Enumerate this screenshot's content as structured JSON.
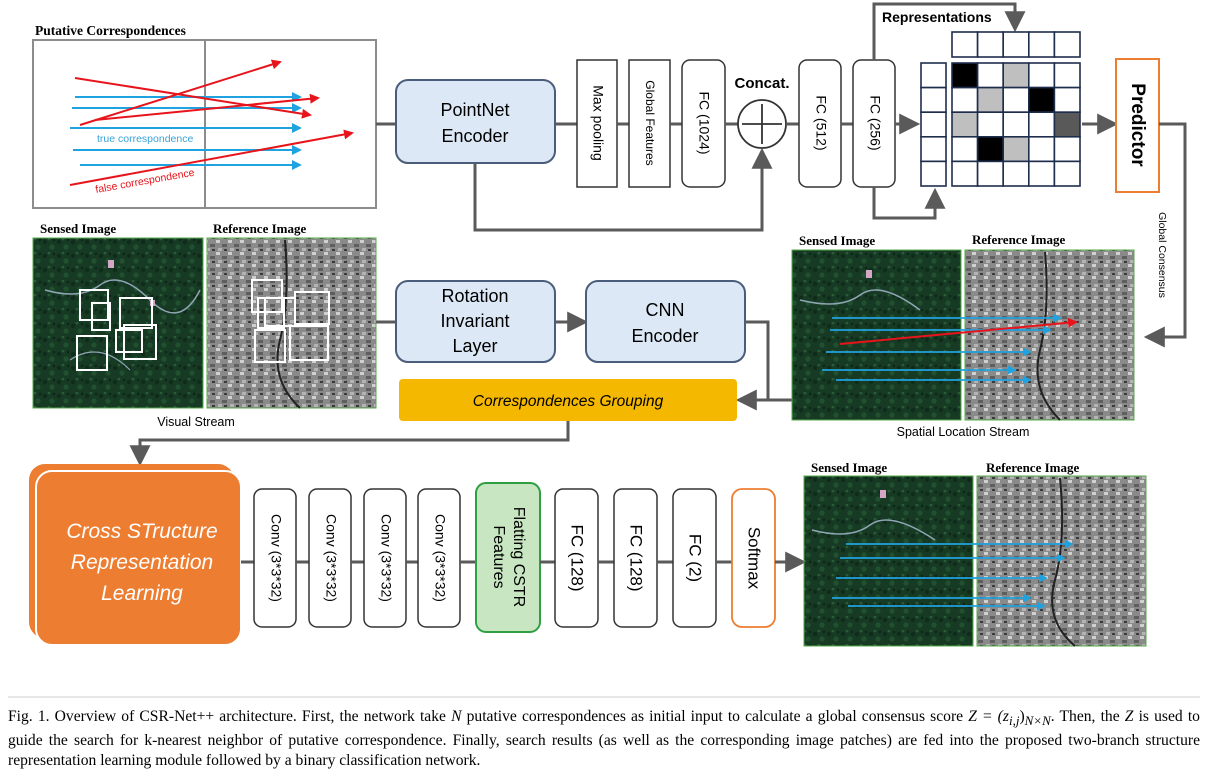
{
  "colors": {
    "blue_box_fill": "#dde8f6",
    "blue_box_stroke": "#4a5d7a",
    "orange": "#ed7d31",
    "yellow": "#f5b800",
    "green_fill": "#c7e6c1",
    "green_stroke": "#2ea043",
    "true_line": "#1fa3e0",
    "false_line": "#e8141b",
    "arrow_gray": "#5a5a5a"
  },
  "putative": {
    "title": "Putative Correspondences",
    "true_label": "true correspondence",
    "false_label": "false correspondence"
  },
  "top_row": {
    "pointnet": [
      "PointNet",
      "Encoder"
    ],
    "maxpool": "Max pooling",
    "global_features": "Global Features",
    "fc1024": "FC (1024)",
    "concat": "Concat.",
    "fc512": "FC (512)",
    "fc256": "FC (256)",
    "representations": "Representations",
    "predictor": "Predictor",
    "global_consensus": "Global Consensus"
  },
  "middle_row": {
    "sensed": "Sensed Image",
    "reference": "Reference Image",
    "visual_stream": "Visual Stream",
    "rotation": [
      "Rotation",
      "Invariant",
      "Layer"
    ],
    "cnn": [
      "CNN",
      "Encoder"
    ],
    "grouping": "Correspondences Grouping",
    "spatial_stream": "Spatial Location Stream",
    "sensed2": "Sensed Image",
    "reference2": "Reference Image"
  },
  "bottom_row": {
    "cstr": [
      "Cross STructure",
      "Representation",
      "Learning"
    ],
    "conv_labels": [
      "Conv (3*3*32)",
      "Conv (3*3*32)",
      "Conv (3*3*32)",
      "Conv (3*3*32)"
    ],
    "flatting": [
      "Flatting CSTR",
      "Features"
    ],
    "fc_labels": [
      "FC (128)",
      "FC (128)",
      "FC (2)"
    ],
    "softmax": "Softmax",
    "sensed3": "Sensed Image",
    "reference3": "Reference Image"
  },
  "matrix": {
    "cells": [
      [
        3,
        0,
        1,
        0,
        0
      ],
      [
        0,
        1,
        0,
        3,
        0
      ],
      [
        1,
        0,
        0,
        0,
        2
      ],
      [
        0,
        3,
        1,
        0,
        0
      ],
      [
        0,
        0,
        0,
        0,
        0
      ]
    ]
  },
  "caption": {
    "p1": "Fig. 1.   Overview of CSR-Net++ architecture. First, the network take ",
    "N": "N",
    "p2": " putative correspondences as initial input to calculate a global consensus score ",
    "Z": "Z = (z",
    "sub_ij": "i,j",
    "sub_NN": "N×N",
    "p3": ". Then, the ",
    "Z2": "Z",
    "p4": " is used to guide the search for k-nearest neighbor of putative correspondence. Finally, search results (as well as the corresponding image patches) are fed into the proposed two-branch structure representation learning module followed by a binary classification network."
  }
}
